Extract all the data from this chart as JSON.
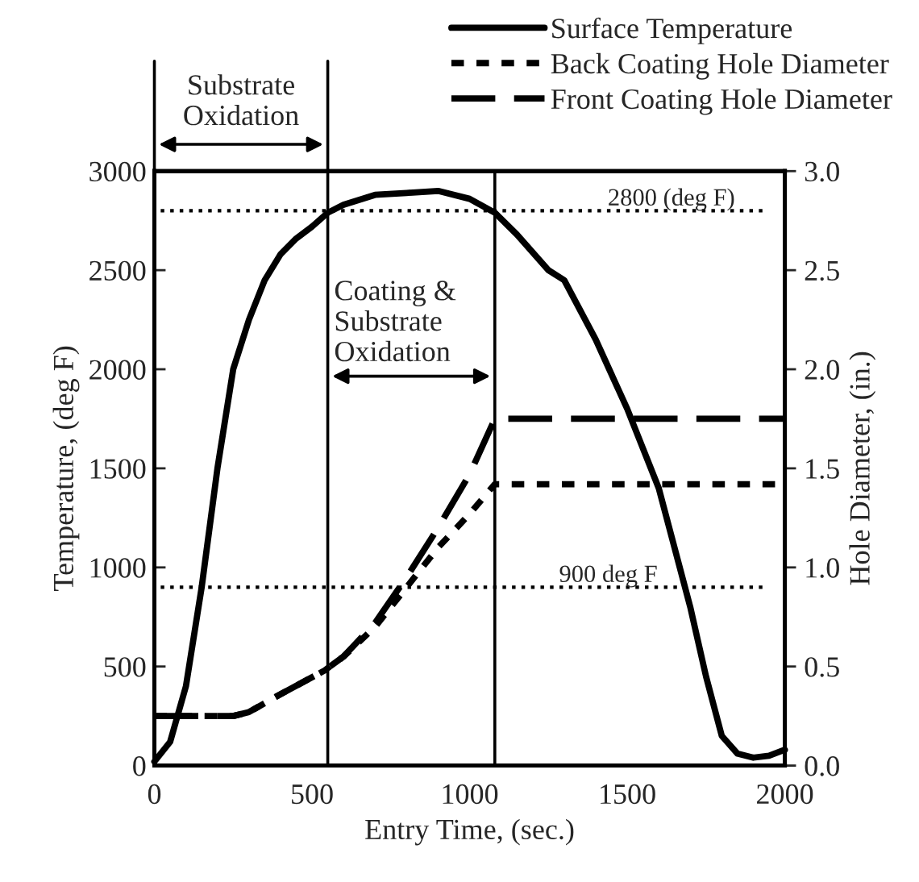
{
  "chart_data": {
    "type": "line",
    "xlabel": "Entry Time, (sec.)",
    "ylabel": "Temperature, (deg F)",
    "y2label": "Hole Diameter, (in.)",
    "xlim": [
      0,
      2000
    ],
    "xticks": [
      0,
      500,
      1000,
      1500,
      2000
    ],
    "ylim": [
      0,
      3000
    ],
    "yticks": [
      0,
      500,
      1000,
      1500,
      2000,
      2500,
      3000
    ],
    "y2lim": [
      0,
      3
    ],
    "y2ticks": [
      {
        "value": 0,
        "label": "0.0"
      },
      {
        "value": 0.5,
        "label": "0.5"
      },
      {
        "value": 1,
        "label": "1.0"
      },
      {
        "value": 1.5,
        "label": "1.5"
      },
      {
        "value": 2,
        "label": "2.0"
      },
      {
        "value": 2.5,
        "label": "2.5"
      },
      {
        "value": 3,
        "label": "3.0"
      }
    ],
    "legend": "top right",
    "grid": false,
    "marker": "none",
    "series": [
      {
        "name": "Surface Temperature",
        "color": "#000000",
        "line_style": "solid",
        "x": [
          0,
          50,
          100,
          150,
          200,
          250,
          300,
          350,
          400,
          450,
          500,
          550,
          600,
          700,
          800,
          900,
          1000,
          1080,
          1150,
          1250,
          1300,
          1400,
          1500,
          1600,
          1650,
          1700,
          1750,
          1800,
          1850,
          1900,
          1950,
          2000
        ],
        "values": [
          20,
          120,
          400,
          900,
          1500,
          2000,
          2250,
          2450,
          2580,
          2660,
          2720,
          2790,
          2830,
          2880,
          2890,
          2900,
          2860,
          2790,
          2680,
          2500,
          2450,
          2150,
          1800,
          1400,
          1100,
          800,
          450,
          150,
          60,
          40,
          50,
          80
        ]
      },
      {
        "name": "Back Coating Hole Diameter",
        "color": "#000000",
        "line_style": "dotted",
        "axis": "y2",
        "x": [
          0,
          250,
          300,
          400,
          540,
          600,
          700,
          800,
          900,
          1000,
          1080,
          2000
        ],
        "values": [
          0.25,
          0.25,
          0.27,
          0.36,
          0.48,
          0.55,
          0.7,
          0.9,
          1.1,
          1.27,
          1.42,
          1.42
        ]
      },
      {
        "name": "Front Coating Hole Diameter",
        "color": "#000000",
        "line_style": "dashed",
        "axis": "y2",
        "x": [
          0,
          250,
          300,
          400,
          540,
          600,
          700,
          800,
          900,
          1000,
          1080,
          2000
        ],
        "values": [
          0.25,
          0.25,
          0.27,
          0.36,
          0.48,
          0.55,
          0.72,
          0.95,
          1.2,
          1.47,
          1.75,
          1.75
        ]
      }
    ],
    "ref_lines": [
      {
        "axis": "x",
        "value": 550,
        "line_style": "solid",
        "color": "#000000"
      },
      {
        "axis": "x",
        "value": 1080,
        "line_style": "solid",
        "color": "#000000"
      },
      {
        "axis": "y",
        "value": 2800,
        "label": "2800 (deg F)",
        "line_style": "dotted",
        "color": "#000000"
      },
      {
        "axis": "y",
        "value": 900,
        "label": "900 deg F",
        "line_style": "dotted",
        "color": "#000000"
      }
    ],
    "annotations": [
      "Substrate Oxidation",
      "Coating & Substrate Oxidation"
    ]
  }
}
